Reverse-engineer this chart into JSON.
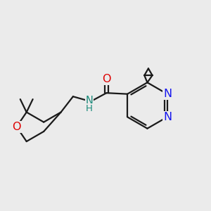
{
  "background_color": "#ebebeb",
  "bond_color": "#1a1a1a",
  "bond_width": 1.6,
  "N_color": "#1515ee",
  "O_color": "#dd0000",
  "NH_color": "#1a8a7a",
  "font_size": 9.5,
  "figsize": [
    3.0,
    3.0
  ],
  "dpi": 100,
  "xlim": [
    0,
    10
  ],
  "ylim": [
    0,
    10
  ]
}
